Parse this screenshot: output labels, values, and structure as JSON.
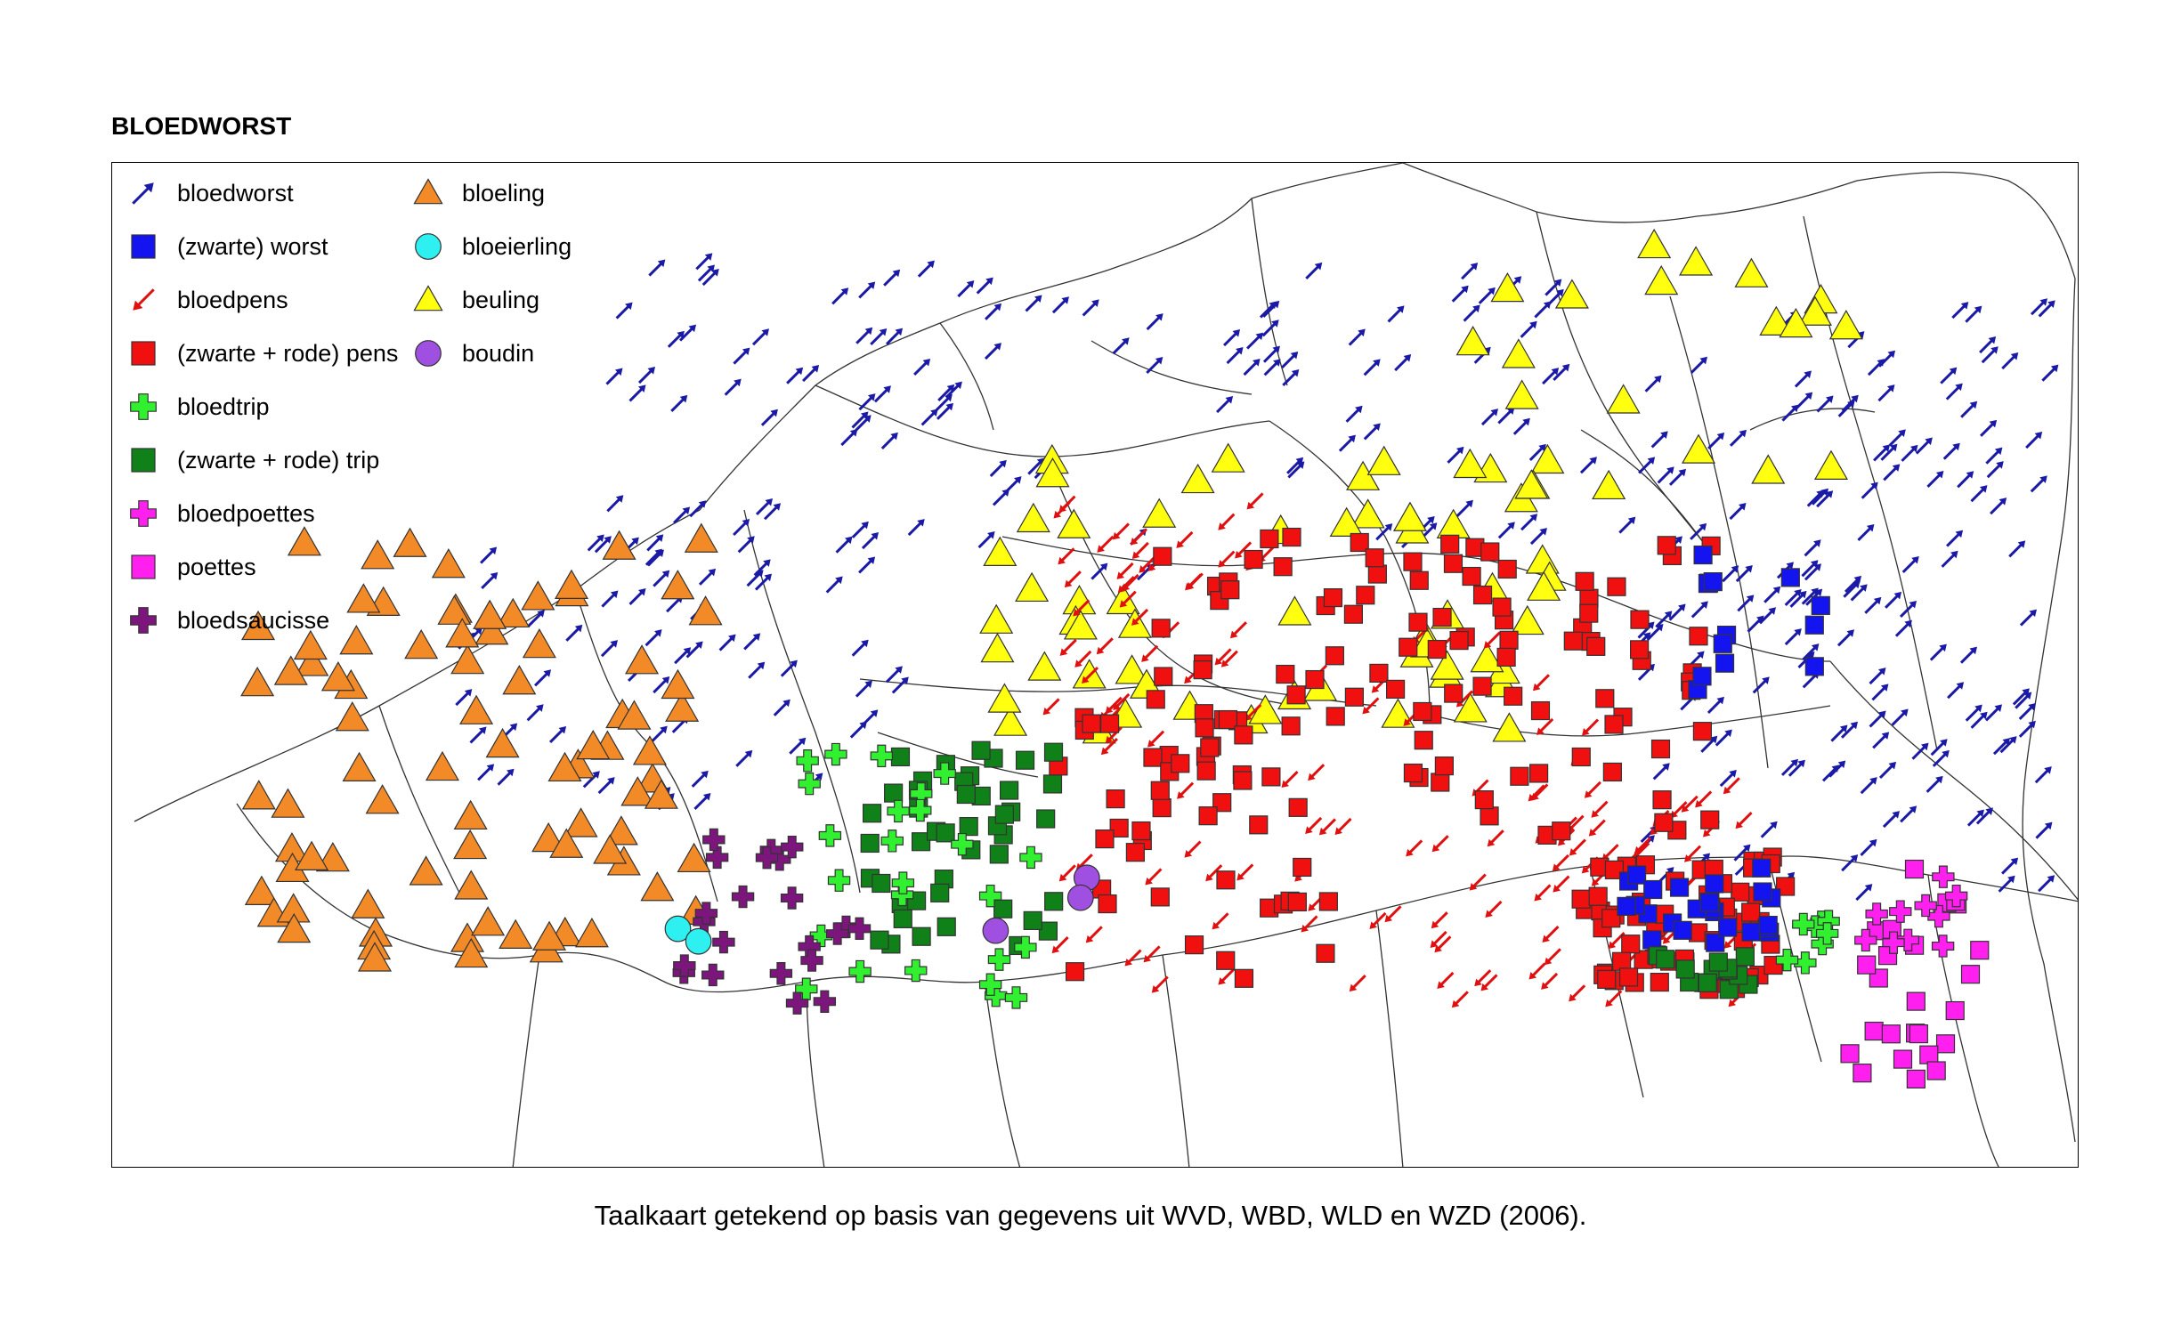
{
  "title": "BLOEDWORST",
  "caption": "Taalkaart getekend op basis van gegevens uit WVD, WBD, WLD en WZD (2006).",
  "colors": {
    "arrow_blue": "#1a1aa6",
    "arrow_red": "#e01010",
    "orange": "#f38a28",
    "cyan": "#2ff0f0",
    "yellow": "#ffff10",
    "purple": "#a050e0",
    "blue": "#1414f0",
    "red": "#f01010",
    "green_light": "#30f030",
    "green_dark": "#108018",
    "magenta": "#ff20f0",
    "purple_dark": "#7c167c"
  },
  "legend": [
    {
      "id": "bloedworst",
      "label": "bloedworst",
      "icon": "arrow-up-right-icon",
      "color": "#1a1aa6"
    },
    {
      "id": "zwarte-worst",
      "label": "(zwarte) worst",
      "icon": "square-icon",
      "color": "#1414f0"
    },
    {
      "id": "bloedpens",
      "label": "bloedpens",
      "icon": "arrow-down-left-icon",
      "color": "#e01010"
    },
    {
      "id": "zwarte-rode-pens",
      "label": "(zwarte + rode) pens",
      "icon": "square-icon",
      "color": "#f01010"
    },
    {
      "id": "bloedtrip",
      "label": "bloedtrip",
      "icon": "cross-icon",
      "color": "#30f030"
    },
    {
      "id": "zwarte-rode-trip",
      "label": "(zwarte + rode) trip",
      "icon": "square-icon",
      "color": "#108018"
    },
    {
      "id": "bloedpoettes",
      "label": "bloedpoettes",
      "icon": "cross-icon",
      "color": "#ff20f0"
    },
    {
      "id": "poettes",
      "label": "poettes",
      "icon": "square-icon",
      "color": "#ff20f0"
    },
    {
      "id": "bloedsaucisse",
      "label": "bloedsaucisse",
      "icon": "cross-icon",
      "color": "#7c167c"
    },
    {
      "id": "bloeling",
      "label": "bloeling",
      "icon": "triangle-icon",
      "color": "#f38a28"
    },
    {
      "id": "bloeierling",
      "label": "bloeierling",
      "icon": "circle-icon",
      "color": "#2ff0f0"
    },
    {
      "id": "beuling",
      "label": "beuling",
      "icon": "triangle-icon",
      "color": "#ffff10"
    },
    {
      "id": "boudin",
      "label": "boudin",
      "icon": "circle-icon",
      "color": "#a050e0"
    }
  ]
}
